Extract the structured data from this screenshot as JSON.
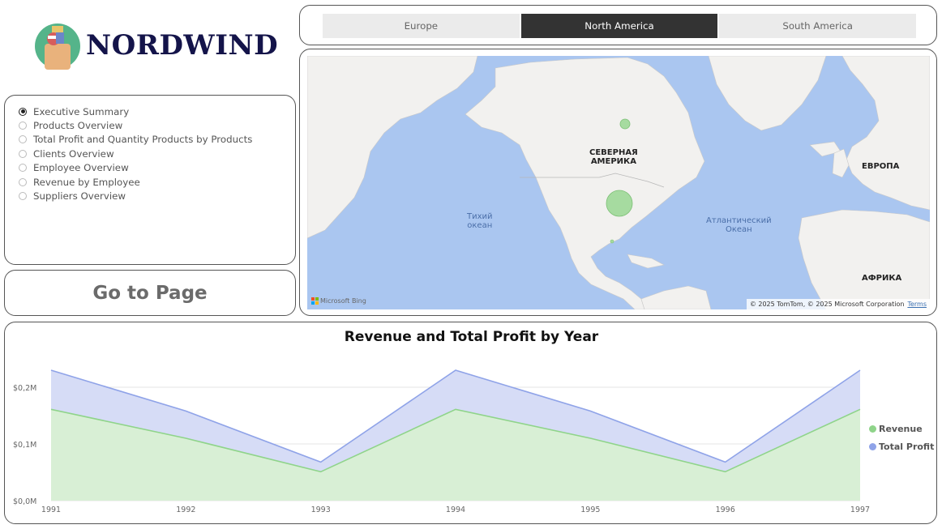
{
  "logo": {
    "text": "NORDWIND"
  },
  "navigation": {
    "selected_index": 0,
    "items": [
      {
        "label": "Executive Summary"
      },
      {
        "label": "Products Overview"
      },
      {
        "label": "Total Profit and Quantity Products by Products"
      },
      {
        "label": "Clients Overview"
      },
      {
        "label": "Employee Overview"
      },
      {
        "label": "Revenue by Employee"
      },
      {
        "label": "Suppliers Overview"
      }
    ],
    "go_button_label": "Go to Page"
  },
  "region_slicer": {
    "options": [
      {
        "label": "Europe",
        "active": false
      },
      {
        "label": "North America",
        "active": true
      },
      {
        "label": "South America",
        "active": false
      }
    ]
  },
  "map": {
    "labels": {
      "north_america_line1": "СЕВЕРНАЯ",
      "north_america_line2": "АМЕРИКА",
      "europe": "ЕВРОПА",
      "africa": "АФРИКА",
      "pacific_line1": "Тихий",
      "pacific_line2": "океан",
      "atlantic_line1": "Атлантический",
      "atlantic_line2": "Океан"
    },
    "provider": "Microsoft Bing",
    "attribution": "© 2025 TomTom, © 2025 Microsoft Corporation",
    "terms_label": "Terms",
    "colors": {
      "water": "#aac6f0",
      "land": "#f2f1ef",
      "bubble": "#a6dba0"
    }
  },
  "chart_data": {
    "type": "area",
    "title": "Revenue and Total Profit by Year",
    "x": [
      "1991",
      "1992",
      "1993",
      "1994",
      "1995",
      "1996",
      "1997"
    ],
    "y_ticks": [
      "$0,0M",
      "$0,1M",
      "$0,2M"
    ],
    "y_tick_values": [
      0,
      0.1,
      0.2
    ],
    "ylim": [
      0,
      0.2
    ],
    "grid": true,
    "legend_position": "right",
    "series": [
      {
        "name": "Total Profit",
        "values": [
          0.23,
          0.158,
          0.068,
          0.23,
          0.158,
          0.068,
          0.23
        ],
        "color": "#8fa3e8",
        "fill": "#d6dcf6"
      },
      {
        "name": "Revenue",
        "values": [
          0.161,
          0.11,
          0.051,
          0.161,
          0.11,
          0.051,
          0.161
        ],
        "color": "#8fd48a",
        "fill": "#d8efd5"
      }
    ],
    "legend": [
      {
        "name": "Revenue",
        "color": "#8fd48a"
      },
      {
        "name": "Total Profit",
        "color": "#8fa3e8"
      }
    ]
  }
}
